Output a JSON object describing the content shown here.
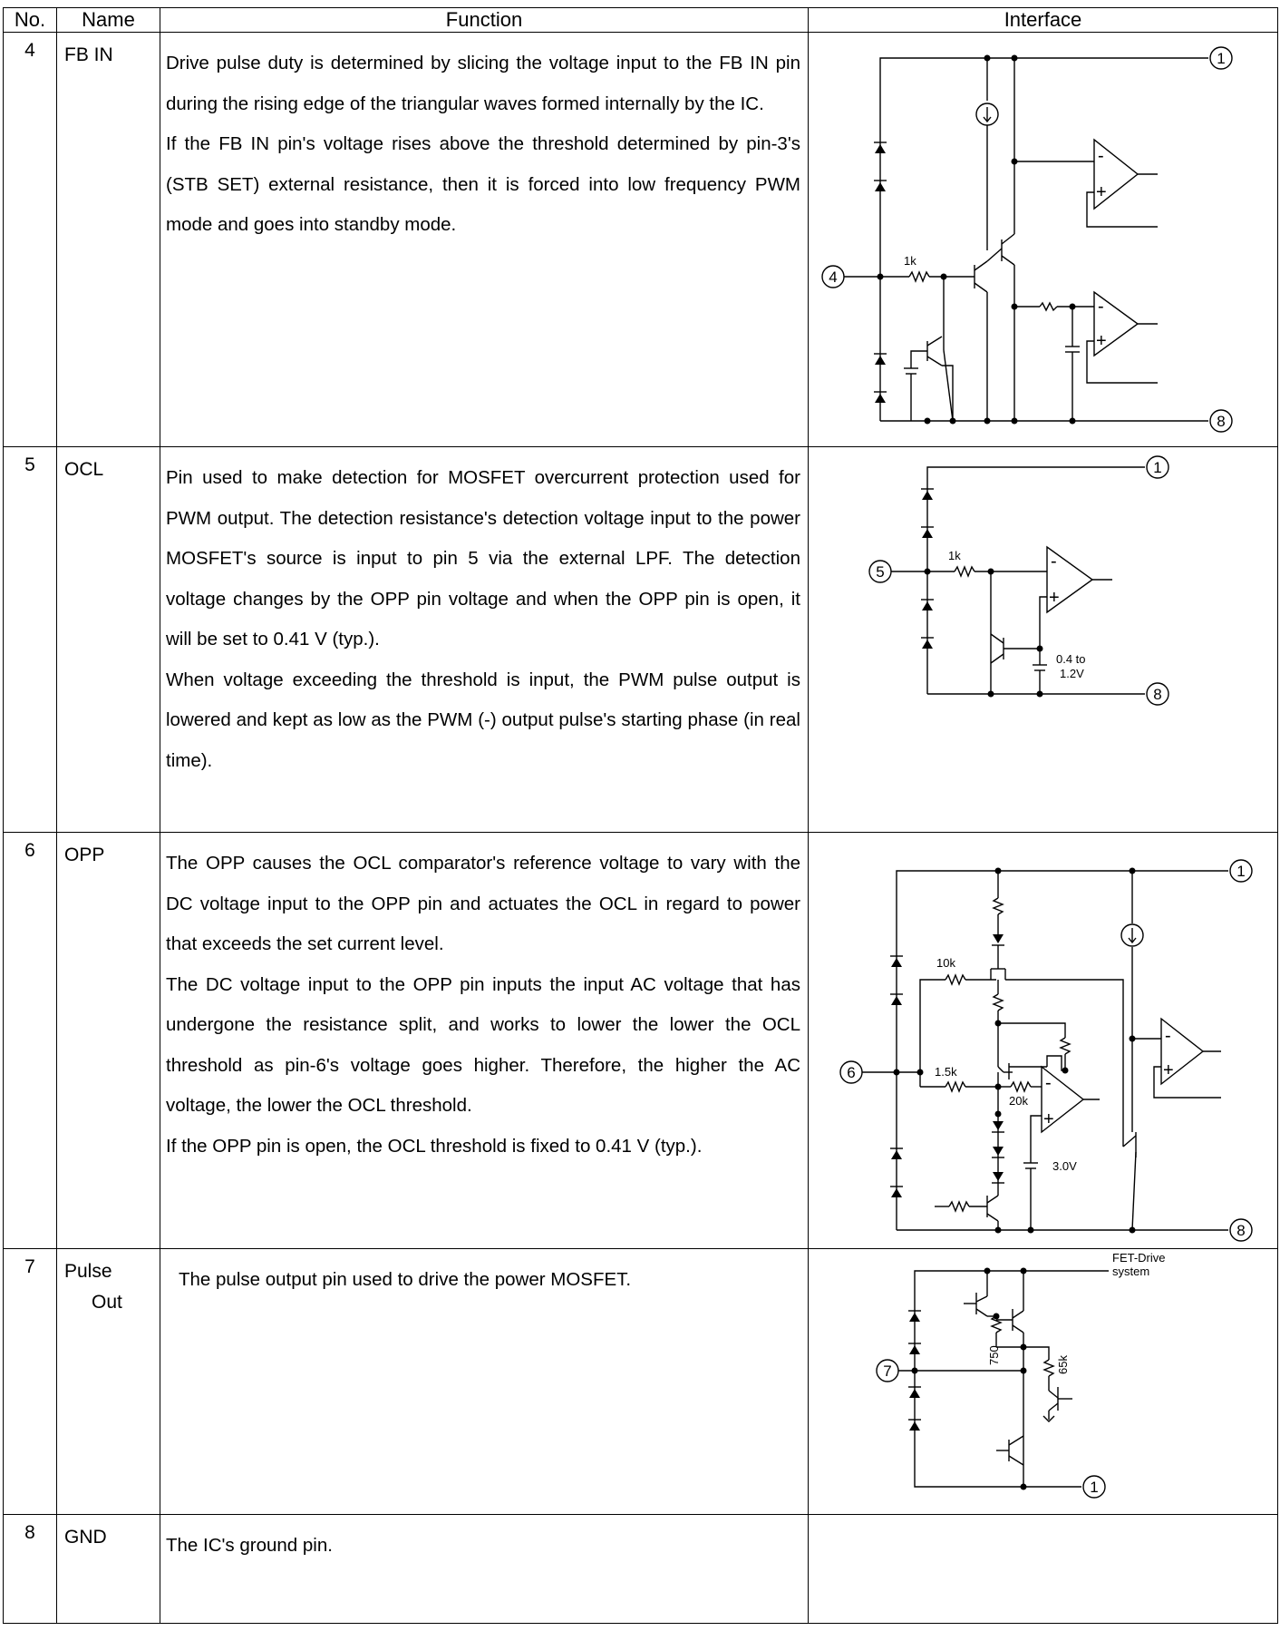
{
  "header": {
    "no": "No.",
    "name": "Name",
    "function": "Function",
    "interface": "Interface"
  },
  "rows": [
    {
      "no": "4",
      "name": [
        "FB IN"
      ],
      "paragraphs": [
        "Drive pulse duty is determined by slicing the voltage input to the FB IN pin during the rising edge of the triangular waves formed internally by the IC.",
        "If the FB IN pin's voltage rises above the threshold determined by pin-3's (STB SET) external resistance, then it is forced into low frequency PWM mode and goes into standby mode."
      ],
      "diagram": {
        "pin": "4",
        "top_pin": "1",
        "bottom_pin": "8",
        "resistor_label": "1k",
        "comp_minus": "-",
        "comp_plus": "+"
      }
    },
    {
      "no": "5",
      "name": [
        "OCL"
      ],
      "paragraphs": [
        "Pin used to make detection for MOSFET overcurrent protection used for PWM output. The detection resistance's detection voltage input to the power MOSFET's source is input to pin 5 via the external LPF. The detection voltage changes by the OPP pin voltage and when the OPP pin is open, it will be set to 0.41 V (typ.).",
        "When voltage exceeding the threshold is input, the PWM pulse output is lowered and kept as low as the PWM (-) output pulse's starting phase (in real time)."
      ],
      "diagram": {
        "pin": "5",
        "top_pin": "1",
        "bottom_pin": "8",
        "resistor_label": "1k",
        "ref_label_1": "0.4 to",
        "ref_label_2": "1.2V",
        "comp_minus": "-",
        "comp_plus": "+"
      }
    },
    {
      "no": "6",
      "name": [
        "OPP"
      ],
      "paragraphs": [
        "The OPP causes the OCL comparator's reference voltage to vary with the DC voltage input to the OPP pin and actuates the OCL in regard to power that exceeds the set current level.",
        "The DC voltage input to the OPP pin inputs the input AC voltage that has undergone the resistance split, and works to lower the lower the OCL threshold as pin-6's voltage goes higher. Therefore, the higher the AC voltage, the lower the OCL threshold.",
        "If the OPP pin is open, the OCL threshold is fixed to 0.41 V (typ.)."
      ],
      "diagram": {
        "pin": "6",
        "top_pin": "1",
        "bottom_pin": "8",
        "r1_label": "10k",
        "r2_label": "1.5k",
        "r3_label": "20k",
        "ref_label": "3.0V",
        "comp_minus": "-",
        "comp_plus": "+"
      }
    },
    {
      "no": "7",
      "name": [
        "Pulse",
        "Out"
      ],
      "paragraphs": [
        "The pulse output pin used to drive the power MOSFET."
      ],
      "diagram": {
        "pin": "7",
        "bottom_pin": "1",
        "fet_label_1": "FET-Drive",
        "fet_label_2": "system",
        "r1_label": "750",
        "r2_label": "65k"
      }
    },
    {
      "no": "8",
      "name": [
        "GND"
      ],
      "paragraphs": [
        "The IC's ground pin."
      ]
    }
  ]
}
